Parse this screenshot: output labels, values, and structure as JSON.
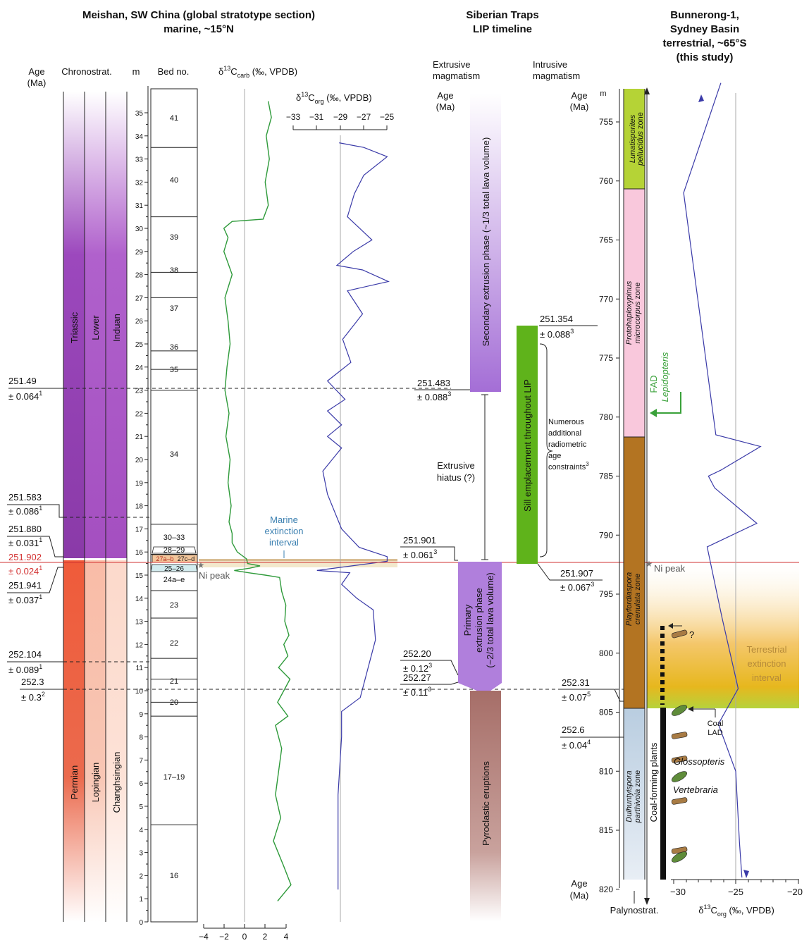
{
  "titles": {
    "meishan_l1": "Meishan, SW China (global stratotype section)",
    "meishan_l2": "marine, ~15°N",
    "traps_l1": "Siberian Traps",
    "traps_l2": "LIP timeline",
    "bun_l1": "Bunnerong-1,",
    "bun_l2": "Sydney Basin",
    "bun_l3": "terrestrial, ~65°S",
    "bun_l4": "(this study)"
  },
  "meishan": {
    "age_hdr_1": "Age",
    "age_hdr_2": "(Ma)",
    "chrono_hdr": "Chronostrat.",
    "m_hdr": "m",
    "bed_hdr": "Bed no.",
    "carb_hdr_a": "δ",
    "carb_hdr_b": "13",
    "carb_hdr_c": "C",
    "carb_hdr_d": "carb",
    "carb_hdr_e": " (‰, VPDB)",
    "org_hdr_a": "δ",
    "org_hdr_b": "13",
    "org_hdr_c": "C",
    "org_hdr_d": "org",
    "org_hdr_e": " (‰, VPDB)",
    "org_ticks": [
      "−33",
      "−31",
      "−29",
      "−27",
      "−25"
    ],
    "carb_ticks": [
      "−4",
      "−2",
      "0",
      "2",
      "4"
    ],
    "depth_ticks": [
      "0",
      "1",
      "2",
      "3",
      "4",
      "5",
      "6",
      "7",
      "8",
      "9",
      "10",
      "11",
      "12",
      "13",
      "14",
      "15",
      "16",
      "17",
      "18",
      "19",
      "20",
      "21",
      "22",
      "23",
      "24",
      "25",
      "26",
      "27",
      "28",
      "29",
      "30",
      "31",
      "32",
      "33",
      "34",
      "35"
    ],
    "chrono": {
      "system_upper": "Triassic",
      "series_upper": "Lower",
      "stage_upper": "Induan",
      "system_lower": "Permian",
      "series_lower": "Lopingian",
      "stage_lower": "Changhsingian"
    },
    "beds": [
      "41",
      "40",
      "39",
      "38",
      "37",
      "36",
      "35",
      "34",
      "30–33",
      "28–29",
      "27a–b",
      "27c–d",
      "25–26",
      "24a–e",
      "23",
      "22",
      "21",
      "20",
      "17–19",
      "16"
    ],
    "ages": [
      {
        "v": "251.49",
        "u": "± 0.064",
        "s": "1"
      },
      {
        "v": "251.583",
        "u": "± 0.086",
        "s": "1"
      },
      {
        "v": "251.880",
        "u": "± 0.031",
        "s": "1"
      },
      {
        "v": "251.902",
        "u": "± 0.024",
        "s": "1"
      },
      {
        "v": "251.941",
        "u": "± 0.037",
        "s": "1"
      },
      {
        "v": "252.104",
        "u": "± 0.089",
        "s": "1"
      },
      {
        "v": "252.3",
        "u": "± 0.3",
        "s": "2"
      }
    ],
    "marine_interval_1": "Marine",
    "marine_interval_2": "extinction",
    "marine_interval_3": "interval",
    "ni_peak": "Ni peak"
  },
  "traps": {
    "extrusive_hdr_1": "Extrusive",
    "extrusive_hdr_2": "magmatism",
    "intrusive_hdr_1": "Intrusive",
    "intrusive_hdr_2": "magmatism",
    "age_hdr_1": "Age",
    "age_hdr_2": "(Ma)",
    "secondary": "Secondary extrusion phase (~1/3 total lava volume)",
    "primary_1": "Primary",
    "primary_2": "extrusion phase",
    "primary_3": "(~2/3 total lava volume)",
    "pyroclastic": "Pyroclastic eruptions",
    "sill": "Sill emplacement throughout LIP",
    "hiatus_1": "Extrusive",
    "hiatus_2": "hiatus (?)",
    "numerous": [
      "Numerous",
      "additional",
      "radiometric",
      "age",
      "constraints"
    ],
    "numerous_sup": "3",
    "ages": [
      {
        "v": "251.354",
        "u": "± 0.088",
        "s": "3"
      },
      {
        "v": "251.483",
        "u": "± 0.088",
        "s": "3"
      },
      {
        "v": "251.901",
        "u": "± 0.061",
        "s": "3"
      },
      {
        "v": "251.907",
        "u": "± 0.067",
        "s": "3"
      },
      {
        "v": "252.20",
        "u": "± 0.12",
        "s": "3"
      },
      {
        "v": "252.27",
        "u": "± 0.11",
        "s": "3"
      }
    ]
  },
  "bunnerong": {
    "m_hdr": "m",
    "age_hdr_1": "Age",
    "age_hdr_2": "(Ma)",
    "age_bottom_1": "Age",
    "age_bottom_2": "(Ma)",
    "depth_ticks": [
      "755",
      "760",
      "765",
      "770",
      "775",
      "780",
      "785",
      "790",
      "795",
      "800",
      "805",
      "810",
      "815",
      "820"
    ],
    "zones": [
      {
        "a": "Lunatisporites",
        "b": "pellucidus",
        "c": " zone"
      },
      {
        "a": "Protohaploxypinus",
        "b": "microcorpus",
        "c": " zone"
      },
      {
        "a": "Playfordiaspora",
        "b": "crenulata",
        "c": " zone"
      },
      {
        "a": "Dulhuntyispora",
        "b": "parthivola",
        "c": " zone"
      }
    ],
    "palynostrat": "Palynostrat.",
    "org_ticks": [
      "−30",
      "−25",
      "−20"
    ],
    "org_axis_a": "δ",
    "org_axis_b": "13",
    "org_axis_c": "C",
    "org_axis_d": "org",
    "org_axis_e": " (‰, VPDB)",
    "fad": "FAD",
    "lepidopteris": "Lepidopteris",
    "terr_1": "Terrestrial",
    "terr_2": "extinction",
    "terr_3": "interval",
    "coal_1": "Coal",
    "coal_2": "LAD",
    "question": "?",
    "coal_plants": "Coal-forming plants",
    "glossopteris": "Glossopteris",
    "vertebraria": "Vertebraria",
    "ni_peak": "Ni peak",
    "ages": [
      {
        "v": "252.31",
        "u": "± 0.07",
        "s": "5"
      },
      {
        "v": "252.6",
        "u": "± 0.04",
        "s": "4"
      }
    ]
  },
  "chart_data": {
    "type": "line",
    "panels": [
      {
        "x_label": "δ13Ccarb (‰, VPDB)",
        "y_label": "m",
        "xlim": [
          -4,
          4
        ],
        "ylim": [
          0,
          35.5
        ],
        "series": [
          {
            "points": [
              [
                3.2,
                0.9
              ],
              [
                4.5,
                1.6
              ],
              [
                3.8,
                2.4
              ],
              [
                2.8,
                3.5
              ],
              [
                3.5,
                4.5
              ],
              [
                3.0,
                5.5
              ],
              [
                3.3,
                6.5
              ],
              [
                3.6,
                7.5
              ],
              [
                3.0,
                8.5
              ],
              [
                4.2,
                8.9
              ],
              [
                3.2,
                9.5
              ],
              [
                3.8,
                10.0
              ],
              [
                4.4,
                10.5
              ],
              [
                3.3,
                11.0
              ],
              [
                4.2,
                11.5
              ],
              [
                3.8,
                12.0
              ],
              [
                4.3,
                12.4
              ],
              [
                3.9,
                13.0
              ],
              [
                4.0,
                13.7
              ],
              [
                3.6,
                14.3
              ],
              [
                3.4,
                14.9
              ],
              [
                2.0,
                15.0
              ],
              [
                0.4,
                15.1
              ],
              [
                -1.0,
                15.2
              ],
              [
                0.5,
                15.3
              ],
              [
                1.5,
                15.4
              ],
              [
                0.3,
                15.5
              ],
              [
                0.2,
                15.7
              ],
              [
                -0.7,
                16.0
              ],
              [
                -1.2,
                16.4
              ],
              [
                -1.2,
                16.8
              ],
              [
                -1.5,
                17.3
              ],
              [
                -1.3,
                18.0
              ],
              [
                -1.6,
                19.0
              ],
              [
                -1.4,
                20.0
              ],
              [
                -1.8,
                21.0
              ],
              [
                -1.5,
                22.0
              ],
              [
                -1.9,
                23.0
              ],
              [
                -1.7,
                24.0
              ],
              [
                -1.4,
                25.0
              ],
              [
                -1.6,
                26.0
              ],
              [
                -1.9,
                27.0
              ],
              [
                -1.2,
                28.0
              ],
              [
                -2.0,
                29.0
              ],
              [
                -1.6,
                29.6
              ],
              [
                -2.0,
                30.0
              ],
              [
                -1.2,
                30.3
              ],
              [
                1.8,
                30.4
              ],
              [
                2.3,
                31.0
              ],
              [
                2.0,
                32.0
              ],
              [
                2.4,
                33.0
              ],
              [
                2.1,
                34.0
              ],
              [
                2.6,
                34.8
              ],
              [
                2.3,
                35.5
              ]
            ]
          }
        ]
      },
      {
        "x_label": "δ13Corg (‰, VPDB)",
        "y_label": "m",
        "xlim": [
          -33,
          -25
        ],
        "ylim": [
          0,
          35.5
        ],
        "series": [
          {
            "points": [
              [
                -29.2,
                1.4
              ],
              [
                -29.2,
                5.5
              ],
              [
                -28.9,
                8.0
              ],
              [
                -28.9,
                9.1
              ],
              [
                -27.3,
                9.7
              ],
              [
                -26.0,
                12.2
              ],
              [
                -26.2,
                13.5
              ],
              [
                -27.6,
                14.0
              ],
              [
                -28.9,
                14.6
              ],
              [
                -28.2,
                15.1
              ],
              [
                -31.0,
                15.2
              ],
              [
                -25.0,
                15.6
              ],
              [
                -25.0,
                15.8
              ],
              [
                -27.4,
                16.2
              ],
              [
                -28.9,
                17.0
              ],
              [
                -30.1,
                18.5
              ],
              [
                -30.5,
                19.5
              ],
              [
                -28.9,
                20.5
              ],
              [
                -30.1,
                21.0
              ],
              [
                -28.9,
                21.5
              ],
              [
                -30.1,
                22.1
              ],
              [
                -28.6,
                22.6
              ],
              [
                -30.1,
                23.4
              ],
              [
                -28.1,
                24.2
              ],
              [
                -28.8,
                25.2
              ],
              [
                -27.1,
                26.3
              ],
              [
                -28.4,
                27.3
              ],
              [
                -24.9,
                27.7
              ],
              [
                -27.1,
                28.2
              ],
              [
                -29.3,
                28.4
              ],
              [
                -27.9,
                29.0
              ],
              [
                -26.3,
                29.5
              ],
              [
                -28.4,
                30.5
              ],
              [
                -27.8,
                31.5
              ],
              [
                -27.0,
                32.3
              ],
              [
                -25.0,
                33.1
              ],
              [
                -27.0,
                33.5
              ],
              [
                -29.1,
                33.7
              ]
            ]
          }
        ]
      },
      {
        "x_label": "δ13Corg (‰, VPDB)",
        "y_label": "m",
        "xlim": [
          -31,
          -20
        ],
        "ylim": [
          822,
          751
        ],
        "series": [
          {
            "points": [
              [
                -24.5,
                819
              ],
              [
                -24.7,
                816
              ],
              [
                -25.0,
                810
              ],
              [
                -26.4,
                806
              ],
              [
                -24.8,
                803
              ],
              [
                -26.1,
                797
              ],
              [
                -27.3,
                791
              ],
              [
                -23.3,
                789
              ],
              [
                -26.7,
                786
              ],
              [
                -27.2,
                785
              ],
              [
                -26.2,
                784.5
              ],
              [
                -23.0,
                782.5
              ],
              [
                -26.6,
                781.5
              ],
              [
                -29.2,
                761
              ],
              [
                -26.2,
                751.7
              ]
            ]
          }
        ]
      }
    ]
  }
}
